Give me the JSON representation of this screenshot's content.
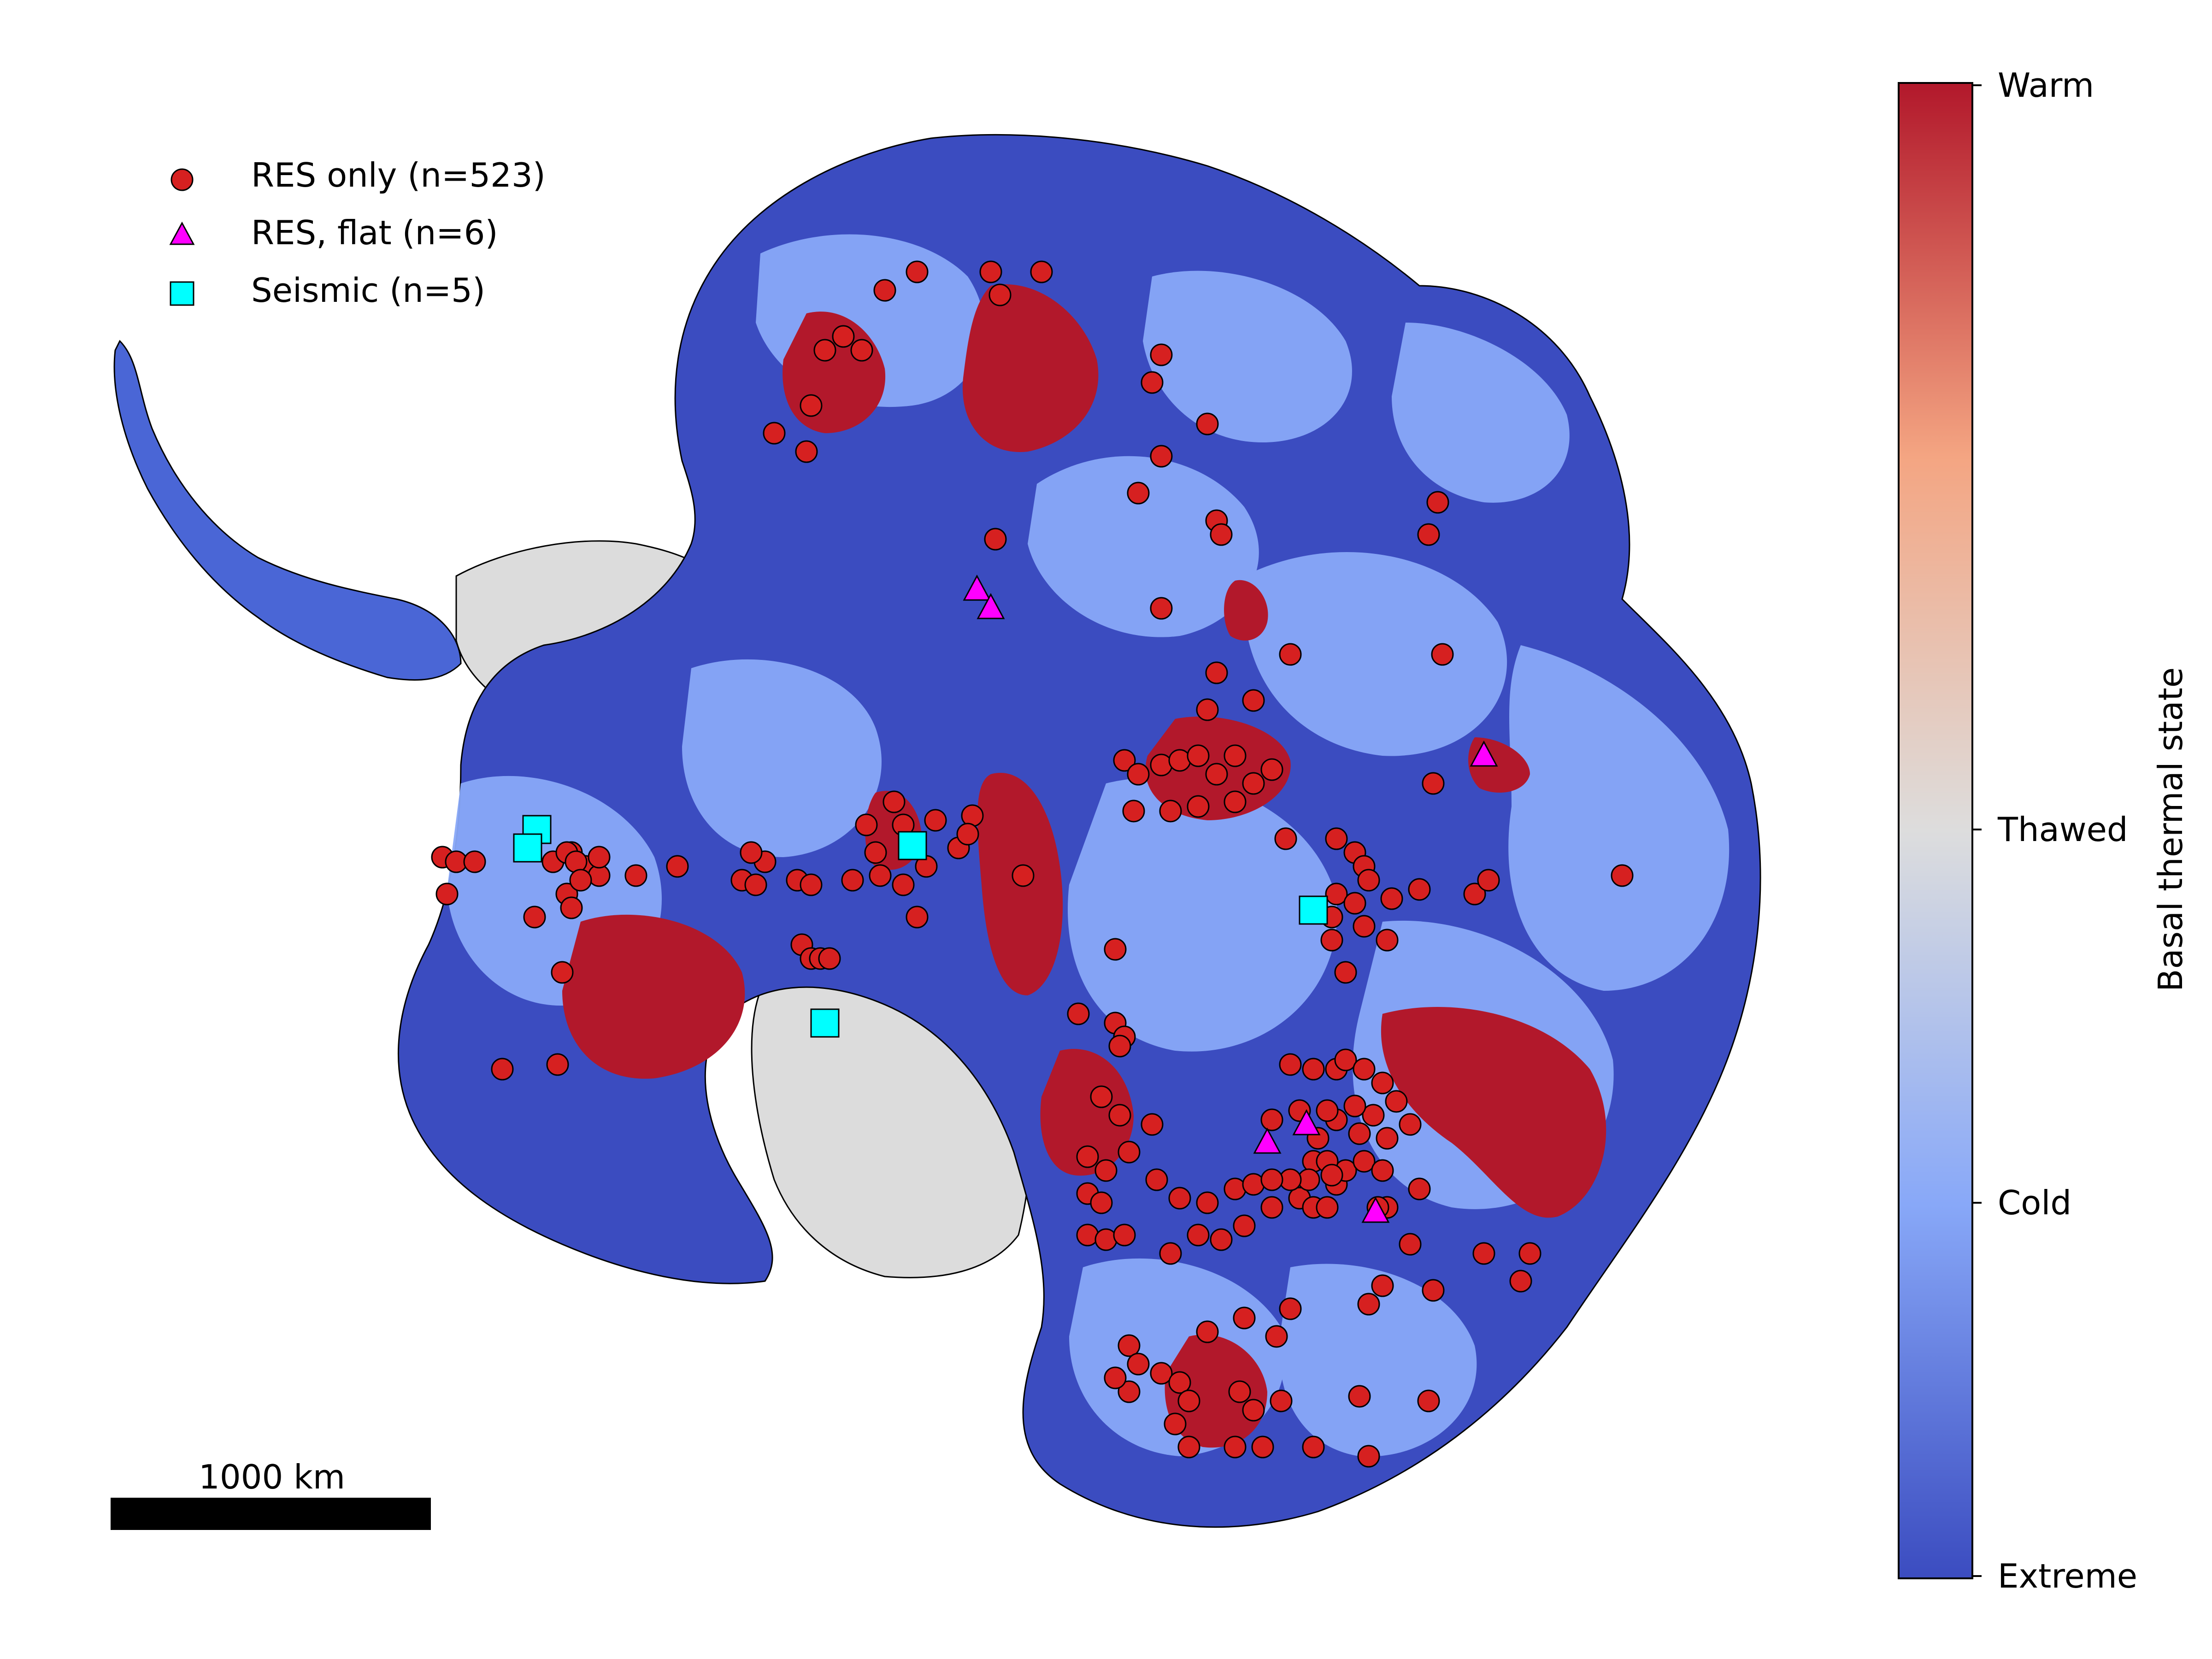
{
  "legend": {
    "items": [
      {
        "label": "RES only (n=523)",
        "marker": "circle",
        "color": "#cc1c1c"
      },
      {
        "label": "RES, flat (n=6)",
        "marker": "triangle",
        "color": "#ff00ff"
      },
      {
        "label": "Seismic (n=5)",
        "marker": "square",
        "color": "#00ffff"
      }
    ]
  },
  "colorbar": {
    "title": "Basal thermal state",
    "ticks": [
      "Warm",
      "Thawed",
      "Cold",
      "Extreme"
    ],
    "colors": {
      "warm": "#b2182b",
      "warm_mid": "#f4a582",
      "thawed": "#dddddd",
      "cold_light": "#aec7ff",
      "cold": "#7b9cf5",
      "extreme": "#3b4cc0"
    }
  },
  "scale_bar": {
    "label": "1000 km"
  },
  "map_colors": {
    "ice_shelf": "#dcdcdc",
    "extreme": "#3b4cc0",
    "cold": "#88a8f8",
    "warm": "#b2182b",
    "res_marker": "#d62020",
    "res_flat_marker": "#ff00ff",
    "seismic_marker": "#00ffff"
  }
}
